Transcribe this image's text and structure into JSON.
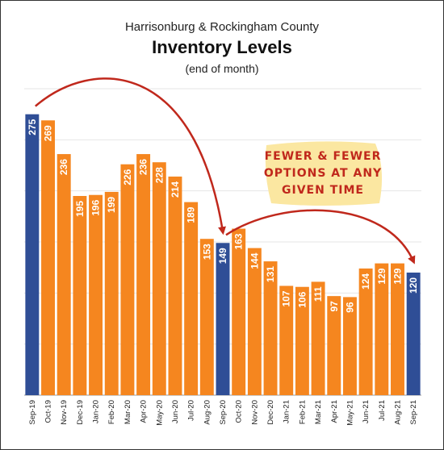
{
  "chart_data": {
    "type": "bar",
    "subtitle": "Harrisonburg & Rockingham County",
    "title": "Inventory Levels",
    "unit_note": "(end of month)",
    "categories": [
      "Sep-19",
      "Oct-19",
      "Nov-19",
      "Dec-19",
      "Jan-20",
      "Feb-20",
      "Mar-20",
      "Apr-20",
      "May-20",
      "Jun-20",
      "Jul-20",
      "Aug-20",
      "Sep-20",
      "Oct-20",
      "Nov-20",
      "Dec-20",
      "Jan-21",
      "Feb-21",
      "Mar-21",
      "Apr-21",
      "May-21",
      "Jun-21",
      "Jul-21",
      "Aug-21",
      "Sep-21"
    ],
    "values": [
      275,
      269,
      236,
      195,
      196,
      199,
      226,
      236,
      228,
      214,
      189,
      153,
      149,
      163,
      144,
      131,
      107,
      106,
      111,
      97,
      96,
      124,
      129,
      129,
      120
    ],
    "highlight_categories": [
      "Sep-19",
      "Sep-20",
      "Sep-21"
    ],
    "ylim": [
      0,
      300
    ],
    "grid": true,
    "annotation": {
      "lines": [
        "FEWER & FEWER",
        "OPTIONS AT ANY",
        "GIVEN TIME"
      ]
    },
    "colors": {
      "bar": "#f5861f",
      "highlight": "#2f4e96",
      "arrow": "#c0281c",
      "note_bg": "#fbe7a1",
      "grid": "#e6e6e6"
    }
  }
}
